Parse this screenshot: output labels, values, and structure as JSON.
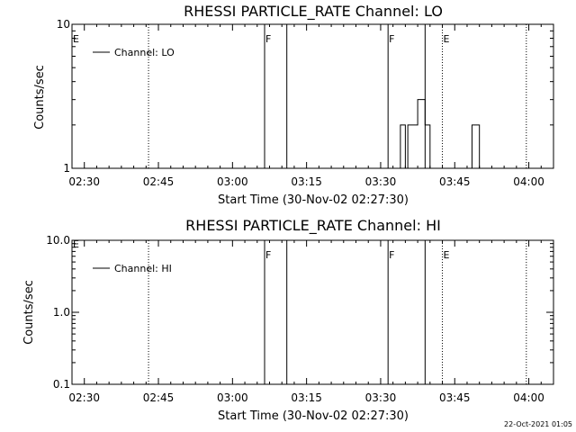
{
  "chart_data": [
    {
      "type": "line",
      "title": "RHESSI PARTICLE_RATE Channel: LO",
      "xlabel": "Start Time (30-Nov-02 02:27:30)",
      "ylabel": "Counts/sec",
      "y_scale": "log",
      "ylim": [
        1,
        10
      ],
      "y_ticks": [
        {
          "v": 1,
          "label": "1"
        },
        {
          "v": 10,
          "label": "10"
        }
      ],
      "x_range_minutes": [
        0,
        97.5
      ],
      "x_ticks": [
        {
          "m": 2.5,
          "label": "02:30"
        },
        {
          "m": 17.5,
          "label": "02:45"
        },
        {
          "m": 32.5,
          "label": "03:00"
        },
        {
          "m": 47.5,
          "label": "03:15"
        },
        {
          "m": 62.5,
          "label": "03:30"
        },
        {
          "m": 77.5,
          "label": "03:45"
        },
        {
          "m": 92.5,
          "label": "04:00"
        }
      ],
      "legend": {
        "position": "top-left",
        "entries": [
          "Channel: LO"
        ]
      },
      "series": [
        {
          "name": "Channel: LO",
          "x": [
            66.0,
            66.5,
            67.0,
            67.5,
            68.0,
            68.5,
            69.0,
            69.5,
            70.0,
            70.5,
            71.0,
            71.5,
            72.0,
            72.5,
            73.0,
            73.5,
            74.0,
            80.5,
            81.0,
            81.5,
            82.0,
            82.5
          ],
          "y": [
            1,
            2,
            2,
            1,
            2,
            2,
            2,
            2,
            3,
            3,
            3,
            2,
            2,
            1,
            1,
            1,
            1,
            1,
            2,
            2,
            2,
            1
          ]
        }
      ],
      "event_lines": [
        {
          "m": 15.5,
          "style": "dotted",
          "label": ""
        },
        {
          "m": 39.0,
          "style": "solid",
          "label": "F"
        },
        {
          "m": 43.5,
          "style": "solid",
          "label": ""
        },
        {
          "m": 64.0,
          "style": "solid",
          "label": "F"
        },
        {
          "m": 71.5,
          "style": "solid",
          "label": ""
        },
        {
          "m": 75.0,
          "style": "dotted",
          "label": "E"
        },
        {
          "m": 92.0,
          "style": "dotted",
          "label": ""
        }
      ],
      "left_label": "E"
    },
    {
      "type": "line",
      "title": "RHESSI PARTICLE_RATE Channel: HI",
      "xlabel": "Start Time (30-Nov-02 02:27:30)",
      "ylabel": "Counts/sec",
      "y_scale": "log",
      "ylim": [
        0.1,
        10
      ],
      "y_ticks": [
        {
          "v": 0.1,
          "label": "0.1"
        },
        {
          "v": 1,
          "label": "1.0"
        },
        {
          "v": 10,
          "label": "10.0"
        }
      ],
      "x_range_minutes": [
        0,
        97.5
      ],
      "x_ticks": [
        {
          "m": 2.5,
          "label": "02:30"
        },
        {
          "m": 17.5,
          "label": "02:45"
        },
        {
          "m": 32.5,
          "label": "03:00"
        },
        {
          "m": 47.5,
          "label": "03:15"
        },
        {
          "m": 62.5,
          "label": "03:30"
        },
        {
          "m": 77.5,
          "label": "03:45"
        },
        {
          "m": 92.5,
          "label": "04:00"
        }
      ],
      "legend": {
        "position": "top-left",
        "entries": [
          "Channel: HI"
        ]
      },
      "series": [
        {
          "name": "Channel: HI",
          "x": [],
          "y": []
        }
      ],
      "event_lines": [
        {
          "m": 15.5,
          "style": "dotted",
          "label": ""
        },
        {
          "m": 39.0,
          "style": "solid",
          "label": "F"
        },
        {
          "m": 43.5,
          "style": "solid",
          "label": ""
        },
        {
          "m": 64.0,
          "style": "solid",
          "label": "F"
        },
        {
          "m": 71.5,
          "style": "solid",
          "label": ""
        },
        {
          "m": 75.0,
          "style": "dotted",
          "label": "E"
        },
        {
          "m": 92.0,
          "style": "dotted",
          "label": ""
        }
      ],
      "left_label": "E"
    }
  ],
  "timestamp": "22-Oct-2021 01:05"
}
